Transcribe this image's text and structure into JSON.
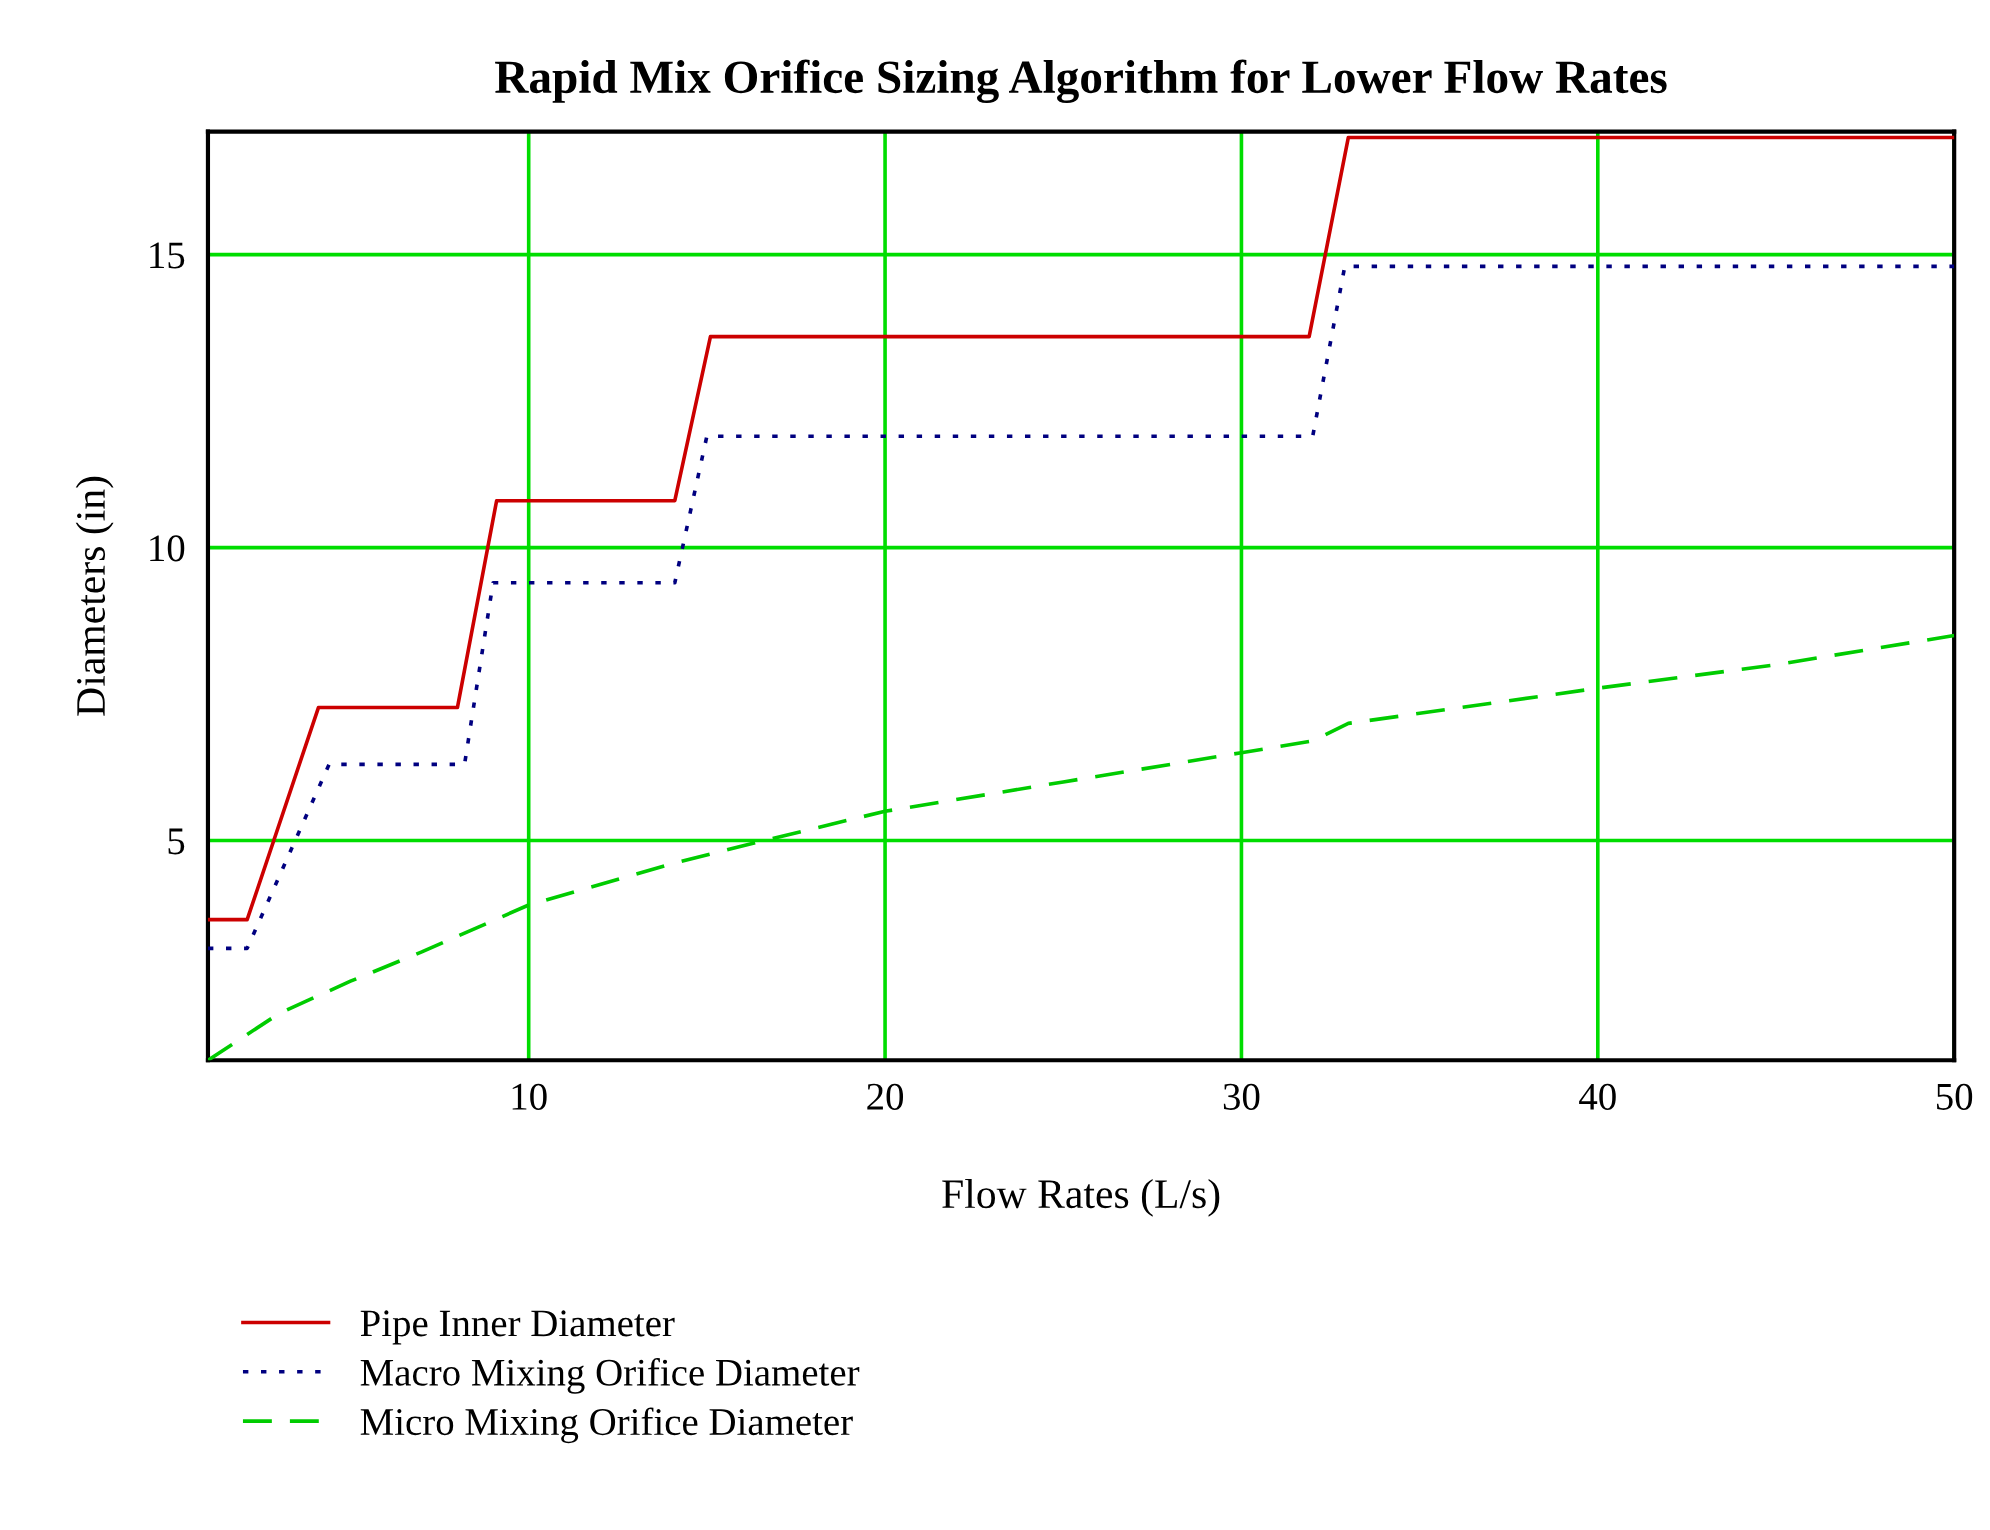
{
  "chart_data": {
    "type": "line",
    "title": "Rapid Mix Orifice Sizing Algorithm for Lower Flow Rates",
    "xlabel": "Flow Rates (L/s)",
    "ylabel": "Diameters (in)",
    "xlim": [
      1,
      50
    ],
    "ylim": [
      1.25,
      17.1
    ],
    "xticks": [
      10,
      20,
      30,
      40,
      50
    ],
    "yticks": [
      5,
      10,
      15
    ],
    "grid": true,
    "legend": "bottom left",
    "marker": "none",
    "series": [
      {
        "name": "Pipe Inner Diameter",
        "color": "#cc0000",
        "line_style": "solid",
        "x": [
          1,
          2.1,
          4.1,
          8.0,
          9.1,
          14.1,
          15.1,
          31.9,
          33.0,
          50
        ],
        "values": [
          3.65,
          3.65,
          7.27,
          7.27,
          10.8,
          10.8,
          13.6,
          13.6,
          17.0,
          17.0
        ]
      },
      {
        "name": "Macro Mixing Orifice Diameter",
        "color": "#000080",
        "line_style": "dotted",
        "x": [
          1,
          2.1,
          4.4,
          8.2,
          9.0,
          14.1,
          15.0,
          32.0,
          32.9,
          50
        ],
        "values": [
          3.16,
          3.16,
          6.3,
          6.3,
          9.4,
          9.4,
          11.9,
          11.9,
          14.8,
          14.8
        ]
      },
      {
        "name": "Micro Mixing Orifice Diameter",
        "color": "#00cc00",
        "line_style": "dashed",
        "x": [
          1,
          2,
          3,
          5,
          7,
          10,
          14,
          16.6,
          20,
          25,
          30,
          32,
          33,
          40,
          45,
          50
        ],
        "values": [
          1.25,
          1.65,
          2.05,
          2.6,
          3.1,
          3.9,
          4.6,
          5.0,
          5.5,
          6.0,
          6.5,
          6.7,
          7.0,
          7.6,
          8.0,
          8.5
        ]
      }
    ]
  }
}
